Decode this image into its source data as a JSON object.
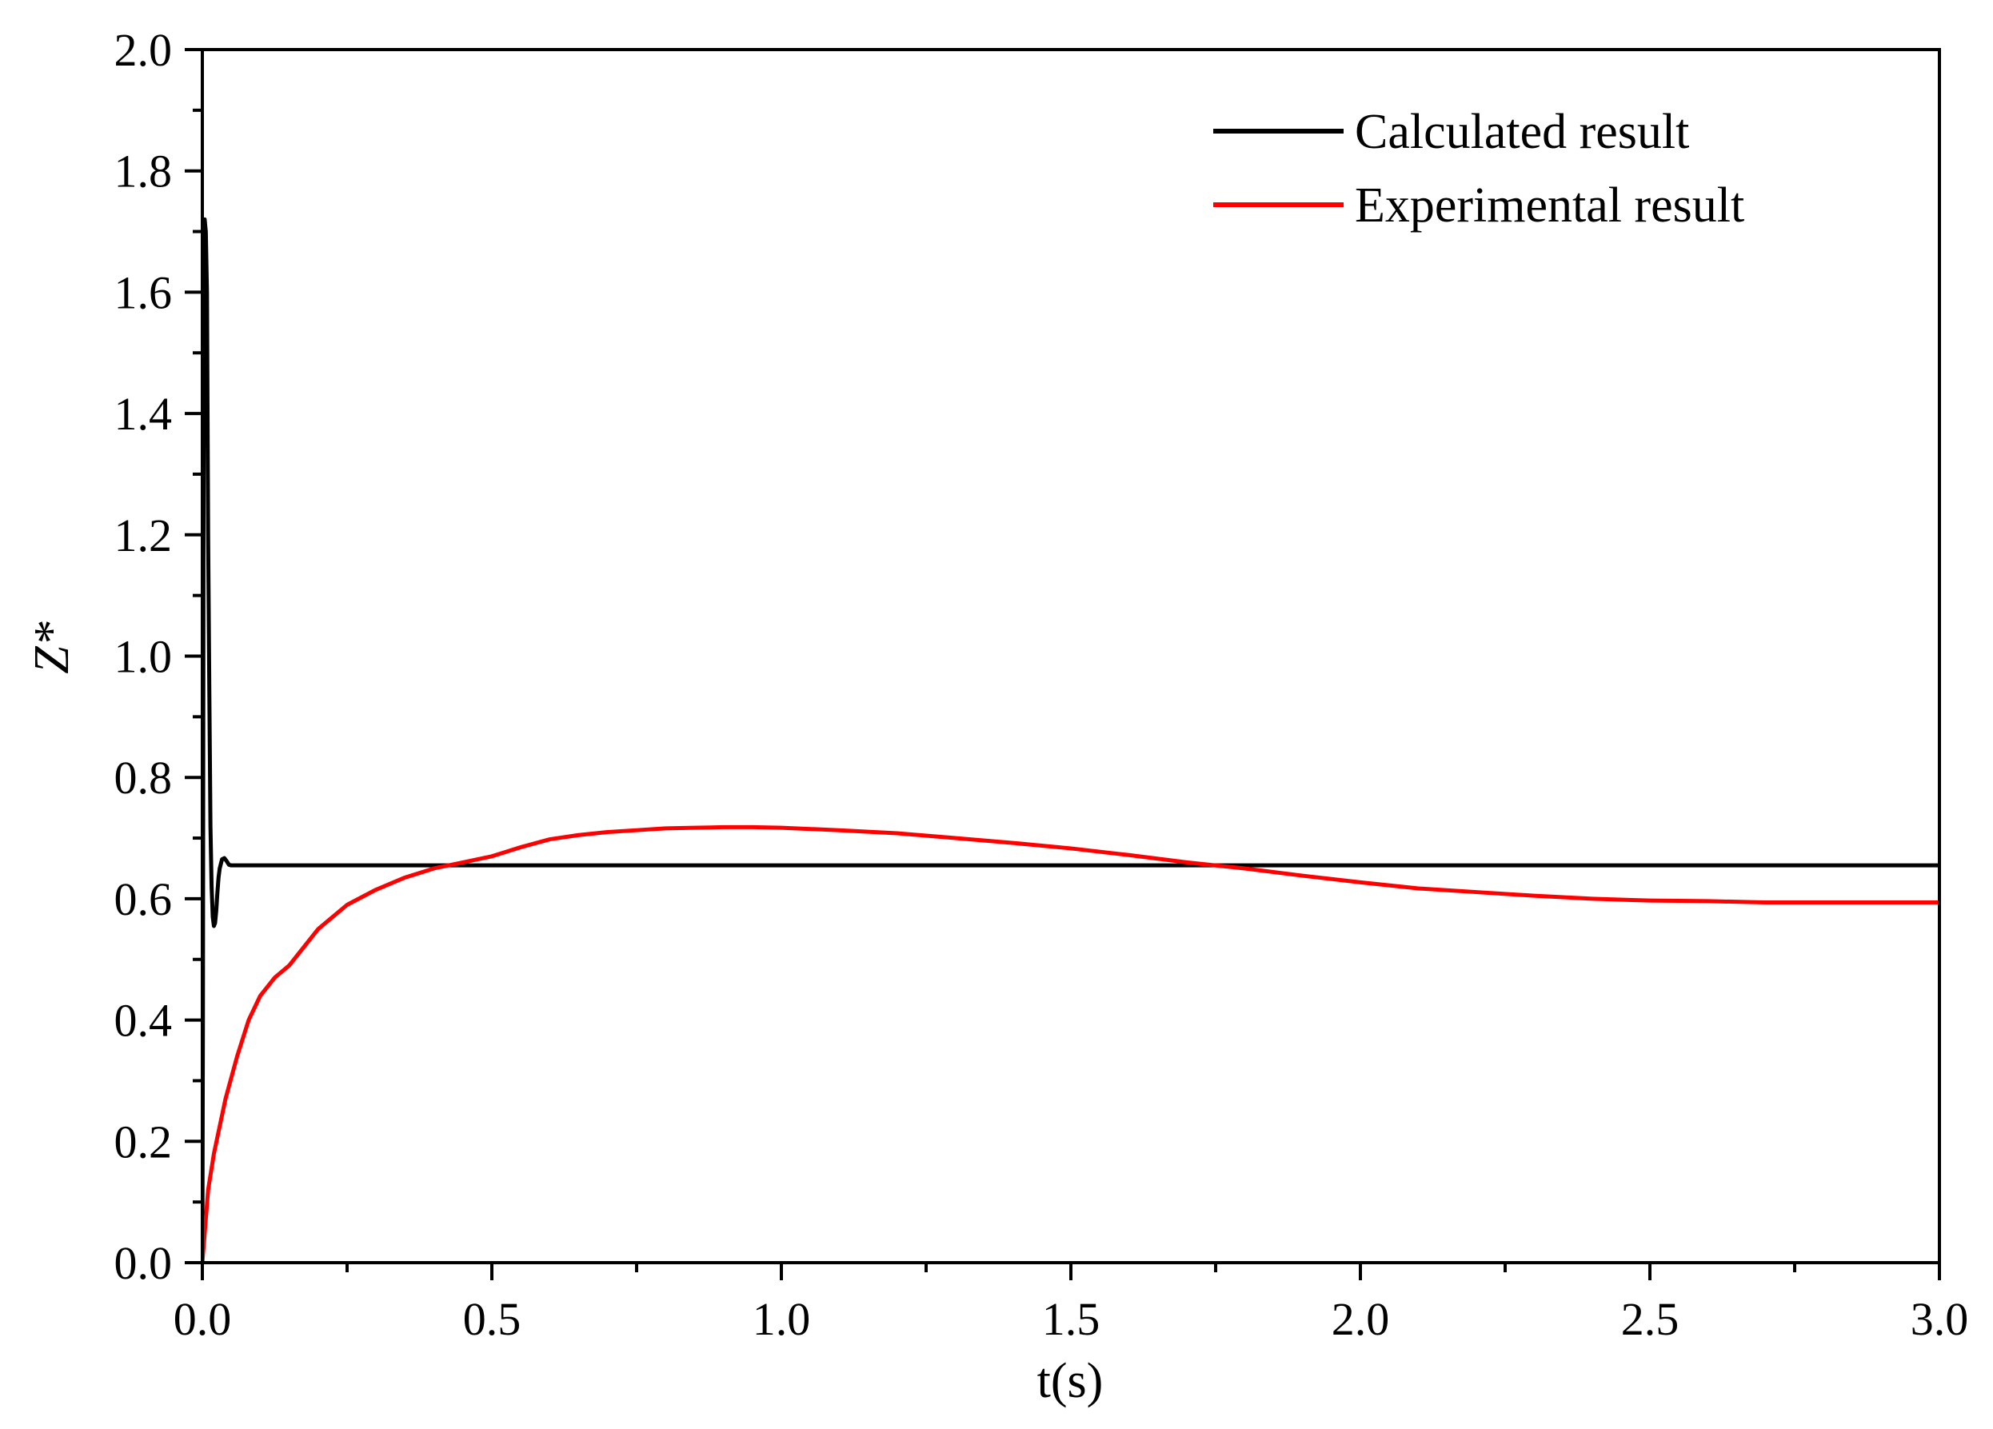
{
  "chart_data": {
    "type": "line",
    "title": "",
    "xlabel": "t(s)",
    "ylabel": "Z*",
    "xlim": [
      0,
      3.0
    ],
    "ylim": [
      0,
      2.0
    ],
    "x_ticks": [
      "0.0",
      "0.5",
      "1.0",
      "1.5",
      "2.0",
      "2.5",
      "3.0"
    ],
    "y_ticks": [
      "0.0",
      "0.2",
      "0.4",
      "0.6",
      "0.8",
      "1.0",
      "1.2",
      "1.4",
      "1.6",
      "1.8",
      "2.0"
    ],
    "grid": false,
    "legend_position": "top-right",
    "series": [
      {
        "name": "Calculated result",
        "color": "#000000",
        "x": [
          0,
          0.001,
          0.002,
          0.003,
          0.004,
          0.006,
          0.008,
          0.01,
          0.012,
          0.014,
          0.016,
          0.018,
          0.02,
          0.022,
          0.024,
          0.026,
          0.028,
          0.03,
          0.034,
          0.038,
          0.042,
          0.046,
          0.05,
          0.06,
          0.08,
          0.1,
          0.5,
          1.0,
          1.5,
          2.0,
          2.5,
          3.0
        ],
        "y": [
          0.0,
          0.4,
          1.2,
          1.65,
          1.72,
          1.7,
          1.6,
          1.2,
          0.95,
          0.72,
          0.62,
          0.57,
          0.555,
          0.56,
          0.58,
          0.61,
          0.635,
          0.65,
          0.665,
          0.667,
          0.662,
          0.656,
          0.655,
          0.655,
          0.655,
          0.655,
          0.655,
          0.655,
          0.655,
          0.655,
          0.655,
          0.655
        ]
      },
      {
        "name": "Experimental result",
        "color": "#ff0000",
        "x": [
          0.0,
          0.01,
          0.02,
          0.04,
          0.06,
          0.08,
          0.1,
          0.125,
          0.15,
          0.2,
          0.25,
          0.3,
          0.35,
          0.4,
          0.45,
          0.5,
          0.55,
          0.6,
          0.65,
          0.7,
          0.75,
          0.8,
          0.85,
          0.9,
          0.95,
          1.0,
          1.1,
          1.2,
          1.3,
          1.4,
          1.5,
          1.6,
          1.7,
          1.8,
          1.9,
          2.0,
          2.1,
          2.2,
          2.3,
          2.4,
          2.5,
          2.6,
          2.7,
          2.8,
          2.9,
          3.0
        ],
        "y": [
          0.0,
          0.12,
          0.18,
          0.27,
          0.34,
          0.4,
          0.44,
          0.47,
          0.49,
          0.55,
          0.59,
          0.615,
          0.635,
          0.65,
          0.66,
          0.67,
          0.685,
          0.698,
          0.705,
          0.71,
          0.713,
          0.716,
          0.717,
          0.718,
          0.718,
          0.717,
          0.713,
          0.708,
          0.7,
          0.692,
          0.683,
          0.672,
          0.66,
          0.65,
          0.638,
          0.627,
          0.617,
          0.611,
          0.605,
          0.6,
          0.597,
          0.596,
          0.594,
          0.594,
          0.594,
          0.594
        ]
      }
    ]
  }
}
